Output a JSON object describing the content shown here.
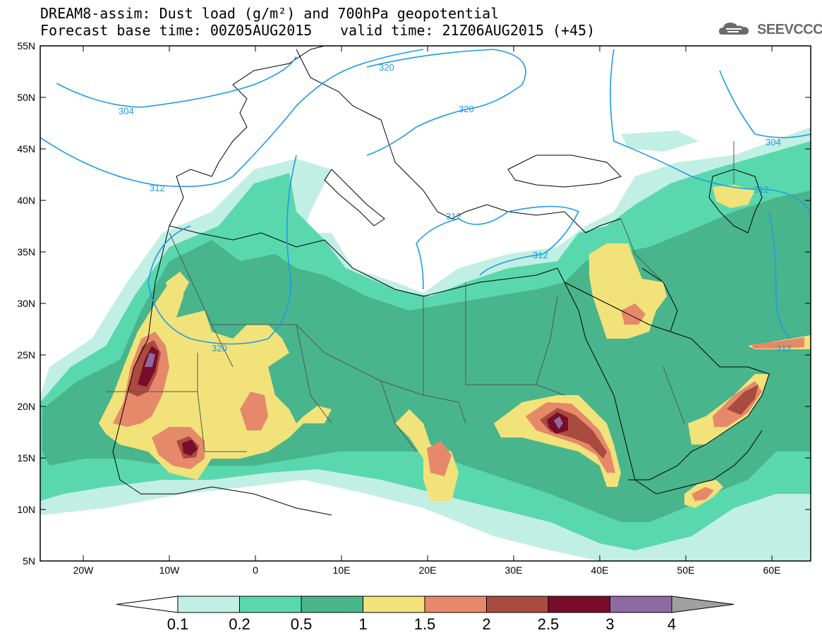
{
  "header": {
    "title_line1": "DREAM8-assim: Dust load (g/m²) and 700hPa geopotential",
    "base_time": "Forecast base time: 00Z05AUG2015",
    "valid_time": "valid time: 21Z06AUG2015 (+45)"
  },
  "logo": {
    "text": "SEEVCCC",
    "icon": "cloud-icon",
    "color": "#6a6a6a"
  },
  "map": {
    "lat_labels": [
      "55N",
      "50N",
      "45N",
      "40N",
      "35N",
      "30N",
      "25N",
      "20N",
      "15N",
      "10N",
      "5N"
    ],
    "lon_labels": [
      "20W",
      "10W",
      "0",
      "10E",
      "20E",
      "30E",
      "40E",
      "50E",
      "60E"
    ],
    "contour_labels": [
      "304",
      "312",
      "320",
      "320",
      "320",
      "312",
      "304",
      "312",
      "312",
      "312"
    ],
    "contour_color": "#1e9be6"
  },
  "colorbar": {
    "labels": [
      "0.1",
      "0.2",
      "0.5",
      "1",
      "1.5",
      "2",
      "2.5",
      "3",
      "4"
    ],
    "colors": [
      "#c2efe4",
      "#5ad8ad",
      "#48b58c",
      "#f2e27a",
      "#e6896a",
      "#a94b3f",
      "#790c28",
      "#8e6aa2"
    ],
    "under_color": "#ffffff",
    "over_color": "#a0a0a0"
  }
}
